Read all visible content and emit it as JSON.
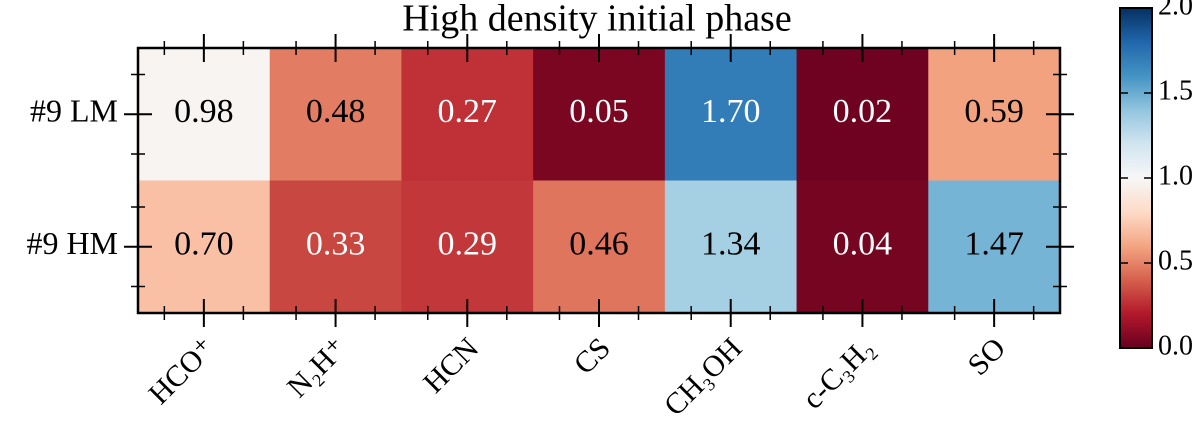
{
  "chart_data": {
    "type": "heatmap",
    "title": "High density initial phase",
    "x_categories": [
      "HCO⁺",
      "N₂H⁺",
      "HCN",
      "CS",
      "CH₃OH",
      "c-C₃H₂",
      "SO"
    ],
    "y_categories": [
      "#9 LM",
      "#9 HM"
    ],
    "values": [
      [
        0.98,
        0.48,
        0.27,
        0.05,
        1.7,
        0.02,
        0.59
      ],
      [
        0.7,
        0.33,
        0.29,
        0.46,
        1.34,
        0.04,
        1.47
      ]
    ],
    "value_labels": [
      [
        "0.98",
        "0.48",
        "0.27",
        "0.05",
        "1.70",
        "0.02",
        "0.59"
      ],
      [
        "0.70",
        "0.33",
        "0.29",
        "0.46",
        "1.34",
        "0.04",
        "1.47"
      ]
    ],
    "colormap": "RdBu",
    "zlim": [
      0,
      2
    ],
    "zticks": [
      {
        "value": 0,
        "label": "0.0"
      },
      0.5,
      {
        "value": 1,
        "label": "1.0"
      },
      1.5,
      {
        "value": 2,
        "label": "2.0"
      }
    ]
  }
}
